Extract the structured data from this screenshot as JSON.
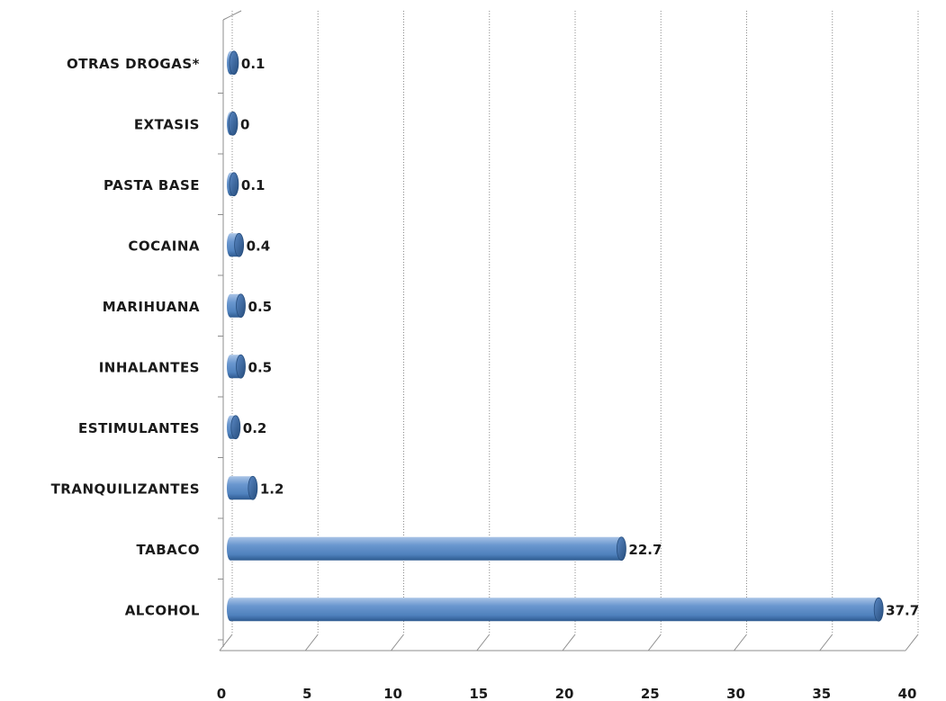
{
  "chart_data": {
    "type": "bar",
    "orientation": "horizontal",
    "style": "3d-cylinder",
    "categories": [
      "ALCOHOL",
      "TABACO",
      "TRANQUILIZANTES",
      "ESTIMULANTES",
      "INHALANTES",
      "MARIHUANA",
      "COCAINA",
      "PASTA BASE",
      "EXTASIS",
      "OTRAS DROGAS*"
    ],
    "values": [
      37.7,
      22.7,
      1.2,
      0.2,
      0.5,
      0.5,
      0.4,
      0.1,
      0,
      0.1
    ],
    "data_labels": [
      "37.7",
      "22.7",
      "1.2",
      "0.2",
      "0.5",
      "0.5",
      "0.4",
      "0.1",
      "0",
      "0.1"
    ],
    "xlim": [
      0,
      40
    ],
    "x_ticks": [
      "0",
      "5",
      "10",
      "15",
      "20",
      "25",
      "30",
      "35",
      "40"
    ],
    "grid": true,
    "legend": "none",
    "colors": {
      "bar": "#4f81bd",
      "bar_dark": "#2e5a8f",
      "bar_light": "#a9c4e6",
      "grid": "#8c8c8c"
    }
  }
}
